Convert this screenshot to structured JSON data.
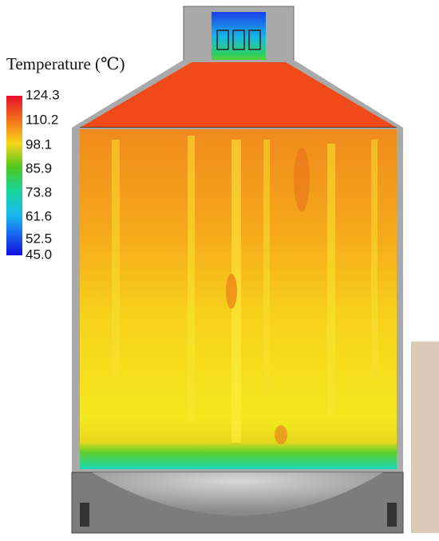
{
  "legend": {
    "title": "Temperature (℃)",
    "labels": [
      "124.3",
      "110.2",
      "98.1",
      "85.9",
      "73.8",
      "61.6",
      "52.5",
      "45.0"
    ]
  }
}
